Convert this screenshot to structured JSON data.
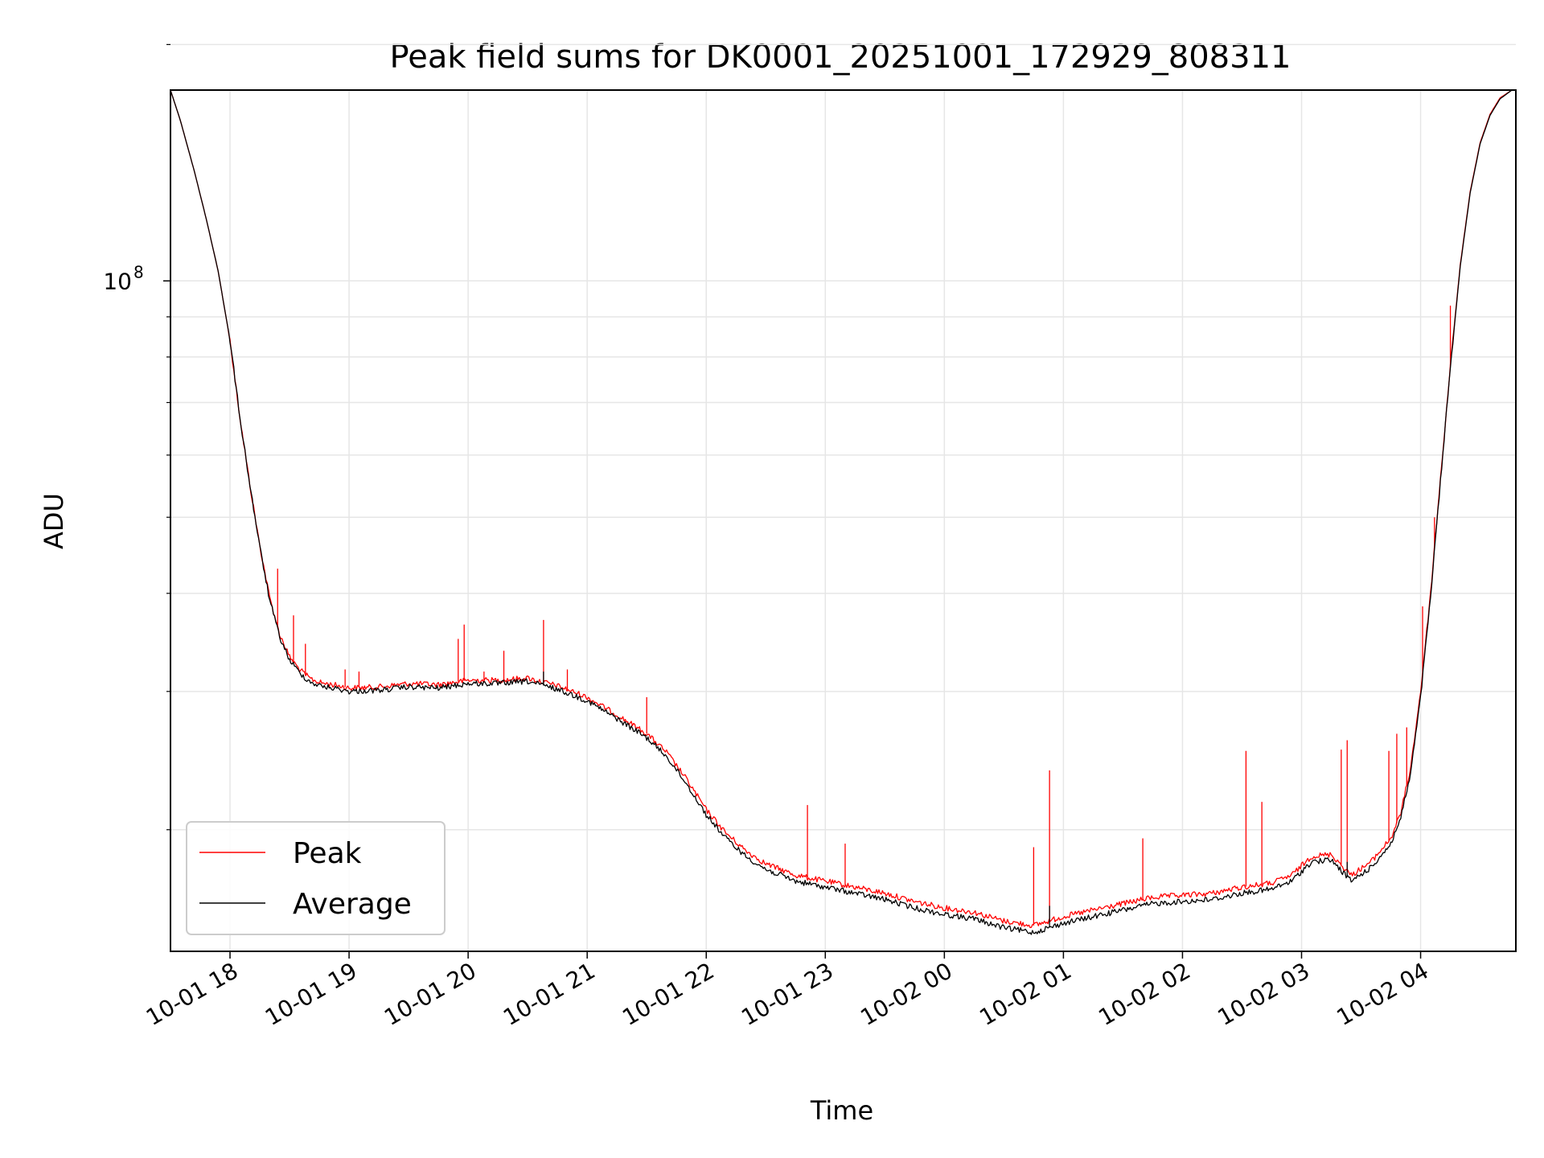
{
  "chart_data": {
    "type": "line",
    "title": "Peak field sums for DK0001_20251001_172929_808311",
    "xlabel": "Time",
    "ylabel": "ADU",
    "y_scale": "log",
    "ylim": [
      14000000,
      175000000
    ],
    "y_major_tick": {
      "value": 100000000,
      "label_base": "10",
      "label_exp": "8"
    },
    "y_minor_ticks": [
      20000000,
      30000000,
      40000000,
      50000000,
      60000000,
      70000000,
      80000000,
      90000000,
      200000000
    ],
    "xlim": [
      "2025-10-01T17:30:00",
      "2025-10-02T04:48:00"
    ],
    "x_ticks": [
      {
        "t": "2025-10-01T18:00:00",
        "label": "10-01 18"
      },
      {
        "t": "2025-10-01T19:00:00",
        "label": "10-01 19"
      },
      {
        "t": "2025-10-01T20:00:00",
        "label": "10-01 20"
      },
      {
        "t": "2025-10-01T21:00:00",
        "label": "10-01 21"
      },
      {
        "t": "2025-10-01T22:00:00",
        "label": "10-01 22"
      },
      {
        "t": "2025-10-01T23:00:00",
        "label": "10-01 23"
      },
      {
        "t": "2025-10-02T00:00:00",
        "label": "10-02 00"
      },
      {
        "t": "2025-10-02T01:00:00",
        "label": "10-02 01"
      },
      {
        "t": "2025-10-02T02:00:00",
        "label": "10-02 02"
      },
      {
        "t": "2025-10-02T03:00:00",
        "label": "10-02 03"
      },
      {
        "t": "2025-10-02T04:00:00",
        "label": "10-02 04"
      }
    ],
    "grid": true,
    "legend_position": "lower-left",
    "series": [
      {
        "name": "Peak",
        "color": "#ff0000",
        "points": [
          [
            "2025-10-01T17:30:00",
            175000000
          ],
          [
            "2025-10-01T17:35:00",
            160000000
          ],
          [
            "2025-10-01T17:42:00",
            138000000
          ],
          [
            "2025-10-01T17:48:00",
            120000000
          ],
          [
            "2025-10-01T17:54:00",
            103000000
          ],
          [
            "2025-10-01T18:00:00",
            84000000
          ],
          [
            "2025-10-01T18:05:00",
            67000000
          ],
          [
            "2025-10-01T18:10:00",
            55000000
          ],
          [
            "2025-10-01T18:15:00",
            46000000
          ],
          [
            "2025-10-01T18:20:00",
            39500000
          ],
          [
            "2025-10-01T18:25:00",
            35500000
          ],
          [
            "2025-10-01T18:30:00",
            33200000
          ],
          [
            "2025-10-01T18:35:00",
            32000000
          ],
          [
            "2025-10-01T18:40:00",
            31200000
          ],
          [
            "2025-10-01T18:45:00",
            30800000
          ],
          [
            "2025-10-01T18:55:00",
            30500000
          ],
          [
            "2025-10-01T19:00:00",
            30300000
          ],
          [
            "2025-10-01T19:15:00",
            30400000
          ],
          [
            "2025-10-01T19:30:00",
            30700000
          ],
          [
            "2025-10-01T19:45:00",
            30600000
          ],
          [
            "2025-10-01T20:00:00",
            31000000
          ],
          [
            "2025-10-01T20:15:00",
            31000000
          ],
          [
            "2025-10-01T20:30:00",
            31200000
          ],
          [
            "2025-10-01T20:45:00",
            30500000
          ],
          [
            "2025-10-01T21:00:00",
            29500000
          ],
          [
            "2025-10-01T21:15:00",
            28000000
          ],
          [
            "2025-10-01T21:30:00",
            26500000
          ],
          [
            "2025-10-01T21:40:00",
            25100000
          ],
          [
            "2025-10-01T21:50:00",
            23200000
          ],
          [
            "2025-10-01T22:00:00",
            21200000
          ],
          [
            "2025-10-01T22:10:00",
            19800000
          ],
          [
            "2025-10-01T22:20:00",
            18800000
          ],
          [
            "2025-10-01T22:30:00",
            18100000
          ],
          [
            "2025-10-01T22:45:00",
            17500000
          ],
          [
            "2025-10-01T23:00:00",
            17200000
          ],
          [
            "2025-10-01T23:15:00",
            16900000
          ],
          [
            "2025-10-01T23:30:00",
            16600000
          ],
          [
            "2025-10-01T23:45:00",
            16200000
          ],
          [
            "2025-10-02T00:00:00",
            15900000
          ],
          [
            "2025-10-02T00:15:00",
            15700000
          ],
          [
            "2025-10-02T00:30:00",
            15300000
          ],
          [
            "2025-10-02T00:45:00",
            15100000
          ],
          [
            "2025-10-02T01:00:00",
            15500000
          ],
          [
            "2025-10-02T01:15:00",
            15800000
          ],
          [
            "2025-10-02T01:30:00",
            16100000
          ],
          [
            "2025-10-02T01:45:00",
            16400000
          ],
          [
            "2025-10-02T02:00:00",
            16500000
          ],
          [
            "2025-10-02T02:15:00",
            16600000
          ],
          [
            "2025-10-02T02:30:00",
            16900000
          ],
          [
            "2025-10-02T02:45:00",
            17100000
          ],
          [
            "2025-10-02T02:55:00",
            17500000
          ],
          [
            "2025-10-02T03:05:00",
            18500000
          ],
          [
            "2025-10-02T03:15:00",
            18600000
          ],
          [
            "2025-10-02T03:25:00",
            17500000
          ],
          [
            "2025-10-02T03:35:00",
            18200000
          ],
          [
            "2025-10-02T03:45:00",
            19500000
          ],
          [
            "2025-10-02T03:50:00",
            21000000
          ],
          [
            "2025-10-02T03:55:00",
            24000000
          ],
          [
            "2025-10-02T04:00:00",
            30000000
          ],
          [
            "2025-10-02T04:05:00",
            40000000
          ],
          [
            "2025-10-02T04:10:00",
            56000000
          ],
          [
            "2025-10-02T04:15:00",
            78000000
          ],
          [
            "2025-10-02T04:20:00",
            105000000
          ],
          [
            "2025-10-02T04:25:00",
            130000000
          ],
          [
            "2025-10-02T04:30:00",
            150000000
          ],
          [
            "2025-10-02T04:35:00",
            163000000
          ],
          [
            "2025-10-02T04:40:00",
            171000000
          ],
          [
            "2025-10-02T04:46:00",
            175000000
          ]
        ],
        "spikes": [
          [
            "2025-10-01T18:24:00",
            43000000
          ],
          [
            "2025-10-01T18:32:00",
            37500000
          ],
          [
            "2025-10-01T18:38:00",
            34500000
          ],
          [
            "2025-10-01T18:58:00",
            32000000
          ],
          [
            "2025-10-01T19:05:00",
            31800000
          ],
          [
            "2025-10-01T19:55:00",
            35000000
          ],
          [
            "2025-10-01T19:58:00",
            36500000
          ],
          [
            "2025-10-01T20:08:00",
            31800000
          ],
          [
            "2025-10-01T20:18:00",
            33800000
          ],
          [
            "2025-10-01T20:38:00",
            37000000
          ],
          [
            "2025-10-01T20:50:00",
            32000000
          ],
          [
            "2025-10-01T21:30:00",
            29500000
          ],
          [
            "2025-10-01T22:51:00",
            21500000
          ],
          [
            "2025-10-01T23:10:00",
            19200000
          ],
          [
            "2025-10-02T00:45:00",
            19000000
          ],
          [
            "2025-10-02T00:53:00",
            23800000
          ],
          [
            "2025-10-02T01:40:00",
            19500000
          ],
          [
            "2025-10-02T02:32:00",
            25200000
          ],
          [
            "2025-10-02T02:40:00",
            21700000
          ],
          [
            "2025-10-02T03:20:00",
            25300000
          ],
          [
            "2025-10-02T03:23:00",
            26000000
          ],
          [
            "2025-10-02T03:44:00",
            25200000
          ],
          [
            "2025-10-02T03:48:00",
            26500000
          ],
          [
            "2025-10-02T03:53:00",
            27000000
          ],
          [
            "2025-10-02T04:01:00",
            38500000
          ],
          [
            "2025-10-02T04:07:00",
            50000000
          ],
          [
            "2025-10-02T04:15:00",
            93000000
          ]
        ]
      },
      {
        "name": "Average",
        "color": "#000000",
        "points": [
          [
            "2025-10-01T17:30:00",
            175000000
          ],
          [
            "2025-10-01T17:35:00",
            160000000
          ],
          [
            "2025-10-01T17:42:00",
            138000000
          ],
          [
            "2025-10-01T17:48:00",
            120000000
          ],
          [
            "2025-10-01T17:54:00",
            103000000
          ],
          [
            "2025-10-01T18:00:00",
            84000000
          ],
          [
            "2025-10-01T18:05:00",
            67000000
          ],
          [
            "2025-10-01T18:10:00",
            55000000
          ],
          [
            "2025-10-01T18:15:00",
            45800000
          ],
          [
            "2025-10-01T18:20:00",
            39200000
          ],
          [
            "2025-10-01T18:25:00",
            35200000
          ],
          [
            "2025-10-01T18:30:00",
            32900000
          ],
          [
            "2025-10-01T18:35:00",
            31700000
          ],
          [
            "2025-10-01T18:40:00",
            30900000
          ],
          [
            "2025-10-01T18:45:00",
            30500000
          ],
          [
            "2025-10-01T18:55:00",
            30200000
          ],
          [
            "2025-10-01T19:00:00",
            30000000
          ],
          [
            "2025-10-01T19:15:00",
            30100000
          ],
          [
            "2025-10-01T19:30:00",
            30400000
          ],
          [
            "2025-10-01T19:45:00",
            30300000
          ],
          [
            "2025-10-01T20:00:00",
            30700000
          ],
          [
            "2025-10-01T20:15:00",
            30700000
          ],
          [
            "2025-10-01T20:30:00",
            30900000
          ],
          [
            "2025-10-01T20:45:00",
            30200000
          ],
          [
            "2025-10-01T21:00:00",
            29200000
          ],
          [
            "2025-10-01T21:15:00",
            27700000
          ],
          [
            "2025-10-01T21:30:00",
            26200000
          ],
          [
            "2025-10-01T21:40:00",
            24800000
          ],
          [
            "2025-10-01T21:50:00",
            22900000
          ],
          [
            "2025-10-01T22:00:00",
            20900000
          ],
          [
            "2025-10-01T22:10:00",
            19500000
          ],
          [
            "2025-10-01T22:20:00",
            18500000
          ],
          [
            "2025-10-01T22:30:00",
            17800000
          ],
          [
            "2025-10-01T22:45:00",
            17200000
          ],
          [
            "2025-10-01T23:00:00",
            16900000
          ],
          [
            "2025-10-01T23:15:00",
            16600000
          ],
          [
            "2025-10-01T23:30:00",
            16300000
          ],
          [
            "2025-10-01T23:45:00",
            15900000
          ],
          [
            "2025-10-02T00:00:00",
            15600000
          ],
          [
            "2025-10-02T00:15:00",
            15400000
          ],
          [
            "2025-10-02T00:30:00",
            15000000
          ],
          [
            "2025-10-02T00:45:00",
            14800000
          ],
          [
            "2025-10-02T01:00:00",
            15200000
          ],
          [
            "2025-10-02T01:15:00",
            15500000
          ],
          [
            "2025-10-02T01:30:00",
            15800000
          ],
          [
            "2025-10-02T01:45:00",
            16100000
          ],
          [
            "2025-10-02T02:00:00",
            16200000
          ],
          [
            "2025-10-02T02:15:00",
            16300000
          ],
          [
            "2025-10-02T02:30:00",
            16600000
          ],
          [
            "2025-10-02T02:45:00",
            16800000
          ],
          [
            "2025-10-02T02:55:00",
            17200000
          ],
          [
            "2025-10-02T03:05:00",
            18200000
          ],
          [
            "2025-10-02T03:15:00",
            18300000
          ],
          [
            "2025-10-02T03:25:00",
            17200000
          ],
          [
            "2025-10-02T03:35:00",
            17900000
          ],
          [
            "2025-10-02T03:45:00",
            19200000
          ],
          [
            "2025-10-02T03:50:00",
            20700000
          ],
          [
            "2025-10-02T03:55:00",
            23600000
          ],
          [
            "2025-10-02T04:00:00",
            29500000
          ],
          [
            "2025-10-02T04:05:00",
            39500000
          ],
          [
            "2025-10-02T04:10:00",
            55500000
          ],
          [
            "2025-10-02T04:15:00",
            77500000
          ],
          [
            "2025-10-02T04:20:00",
            104500000
          ],
          [
            "2025-10-02T04:25:00",
            129500000
          ],
          [
            "2025-10-02T04:30:00",
            149500000
          ],
          [
            "2025-10-02T04:35:00",
            162500000
          ],
          [
            "2025-10-02T04:40:00",
            170500000
          ],
          [
            "2025-10-02T04:46:00",
            175000000
          ]
        ],
        "spikes": [
          [
            "2025-10-01T20:38:00",
            31800000
          ],
          [
            "2025-10-02T00:53:00",
            16000000
          ],
          [
            "2025-10-02T03:23:00",
            18200000
          ]
        ]
      }
    ]
  }
}
